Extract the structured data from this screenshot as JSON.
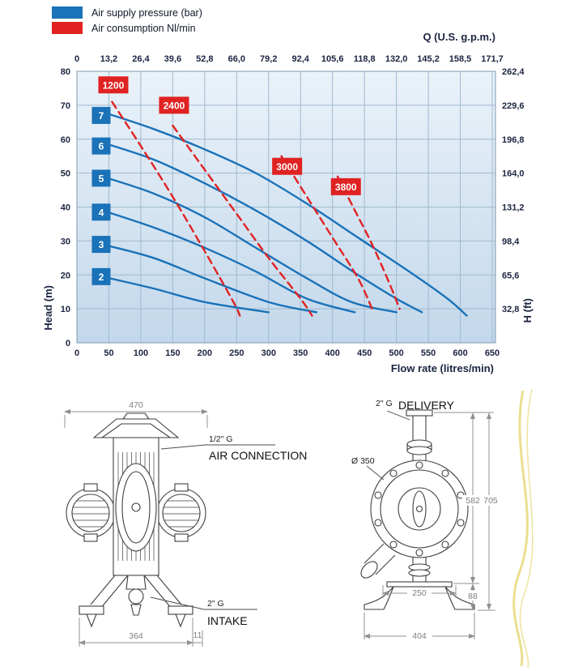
{
  "colors": {
    "pressure_blue": "#1a72b8",
    "consumption_red": "#e02222",
    "axis_text": "#1b2440",
    "grid": "#9fb9cf",
    "plot_bg_top": "#eaf2f9",
    "plot_bg_bottom": "#c3d8eb",
    "drawing_line": "#3f3f3f",
    "dim_text": "#7d7d7d",
    "watermark_yellow": "#e7d87b"
  },
  "legend": {
    "position": "top-left",
    "items": [
      {
        "label": "Air supply pressure (bar)",
        "color": "#1a72b8"
      },
      {
        "label": "Air consumption Nl/min",
        "color": "#e02222"
      }
    ]
  },
  "chart_data": {
    "type": "line",
    "title": "",
    "grid": true,
    "legend_position": "top-left",
    "x_axis": {
      "label": "Flow rate (litres/min)",
      "min": 0,
      "max": 650,
      "ticks": [
        0,
        50,
        100,
        150,
        200,
        250,
        300,
        350,
        400,
        450,
        500,
        550,
        600,
        650
      ]
    },
    "y_axis": {
      "label": "Head (m)",
      "min": 0,
      "max": 80,
      "ticks": [
        0,
        10,
        20,
        30,
        40,
        50,
        60,
        70,
        80
      ]
    },
    "top_axis": {
      "label": "Q (U.S. g.p.m.)",
      "ticks": [
        "0",
        "13,2",
        "26,4",
        "39,6",
        "52,8",
        "66,0",
        "79,2",
        "92,4",
        "105,6",
        "118,8",
        "132,0",
        "145,2",
        "158,5",
        "171,7"
      ]
    },
    "right_axis": {
      "label": "H (ft)",
      "ticks_top_to_bottom": [
        "262,4",
        "229,6",
        "196,8",
        "164,0",
        "131,2",
        "98,4",
        "65,6",
        "32,8"
      ]
    },
    "series": [
      {
        "name": "7 bar",
        "group": "pressure",
        "label": "7",
        "label_pos": [
          38,
          67
        ],
        "points": [
          [
            40,
            68
          ],
          [
            120,
            63
          ],
          [
            200,
            57
          ],
          [
            280,
            50
          ],
          [
            360,
            41
          ],
          [
            440,
            31
          ],
          [
            520,
            21
          ],
          [
            580,
            13
          ],
          [
            610,
            8
          ]
        ]
      },
      {
        "name": "6 bar",
        "group": "pressure",
        "label": "6",
        "label_pos": [
          38,
          58
        ],
        "points": [
          [
            40,
            59
          ],
          [
            120,
            54
          ],
          [
            200,
            47
          ],
          [
            280,
            39
          ],
          [
            360,
            30
          ],
          [
            440,
            20
          ],
          [
            500,
            13
          ],
          [
            540,
            9
          ]
        ]
      },
      {
        "name": "5 bar",
        "group": "pressure",
        "label": "5",
        "label_pos": [
          38,
          48.5
        ],
        "points": [
          [
            40,
            49
          ],
          [
            120,
            44
          ],
          [
            200,
            37
          ],
          [
            280,
            28
          ],
          [
            360,
            19
          ],
          [
            430,
            12
          ],
          [
            500,
            9
          ]
        ]
      },
      {
        "name": "4 bar",
        "group": "pressure",
        "label": "4",
        "label_pos": [
          38,
          38.5
        ],
        "points": [
          [
            40,
            39
          ],
          [
            120,
            34
          ],
          [
            200,
            28
          ],
          [
            280,
            21
          ],
          [
            360,
            13
          ],
          [
            435,
            9
          ]
        ]
      },
      {
        "name": "3 bar",
        "group": "pressure",
        "label": "3",
        "label_pos": [
          38,
          29
        ],
        "points": [
          [
            40,
            29
          ],
          [
            120,
            25
          ],
          [
            200,
            19
          ],
          [
            300,
            12
          ],
          [
            375,
            9
          ]
        ]
      },
      {
        "name": "2 bar",
        "group": "pressure",
        "label": "2",
        "label_pos": [
          38,
          19.5
        ],
        "points": [
          [
            40,
            19.5
          ],
          [
            120,
            16
          ],
          [
            200,
            12
          ],
          [
            300,
            9
          ]
        ]
      },
      {
        "name": "1200 Nl/min",
        "group": "consumption",
        "label": "1200",
        "label_pos": [
          57,
          76
        ],
        "points": [
          [
            55,
            71
          ],
          [
            100,
            58
          ],
          [
            150,
            43
          ],
          [
            200,
            27
          ],
          [
            245,
            12
          ],
          [
            255,
            8
          ]
        ]
      },
      {
        "name": "2400 Nl/min",
        "group": "consumption",
        "label": "2400",
        "label_pos": [
          152,
          70
        ],
        "points": [
          [
            150,
            64
          ],
          [
            200,
            51
          ],
          [
            250,
            38
          ],
          [
            300,
            25
          ],
          [
            350,
            13
          ],
          [
            368,
            8
          ]
        ]
      },
      {
        "name": "3000 Nl/min",
        "group": "consumption",
        "label": "3000",
        "label_pos": [
          329,
          52
        ],
        "points": [
          [
            320,
            55
          ],
          [
            360,
            43
          ],
          [
            400,
            31
          ],
          [
            440,
            19
          ],
          [
            462,
            10
          ]
        ]
      },
      {
        "name": "3800 Nl/min",
        "group": "consumption",
        "label": "3800",
        "label_pos": [
          421,
          46
        ],
        "points": [
          [
            408,
            49
          ],
          [
            435,
            39
          ],
          [
            462,
            29
          ],
          [
            488,
            18
          ],
          [
            505,
            10
          ]
        ]
      }
    ]
  },
  "drawings": {
    "front_view": {
      "dim_width_top": "470",
      "dim_width_bottom": "364",
      "dim_offset": "11",
      "air_connection_size": "1/2\" G",
      "air_connection_label": "AIR CONNECTION",
      "intake_size": "2\" G",
      "intake_label": "INTAKE"
    },
    "side_view": {
      "delivery_size": "2\" G",
      "delivery_label": "DELIVERY",
      "diameter_label": "Ø 350",
      "dim_height_inner": "582",
      "dim_height_total": "705",
      "dim_base_height": "88",
      "dim_base_inner": "250",
      "dim_base_outer": "404"
    }
  }
}
